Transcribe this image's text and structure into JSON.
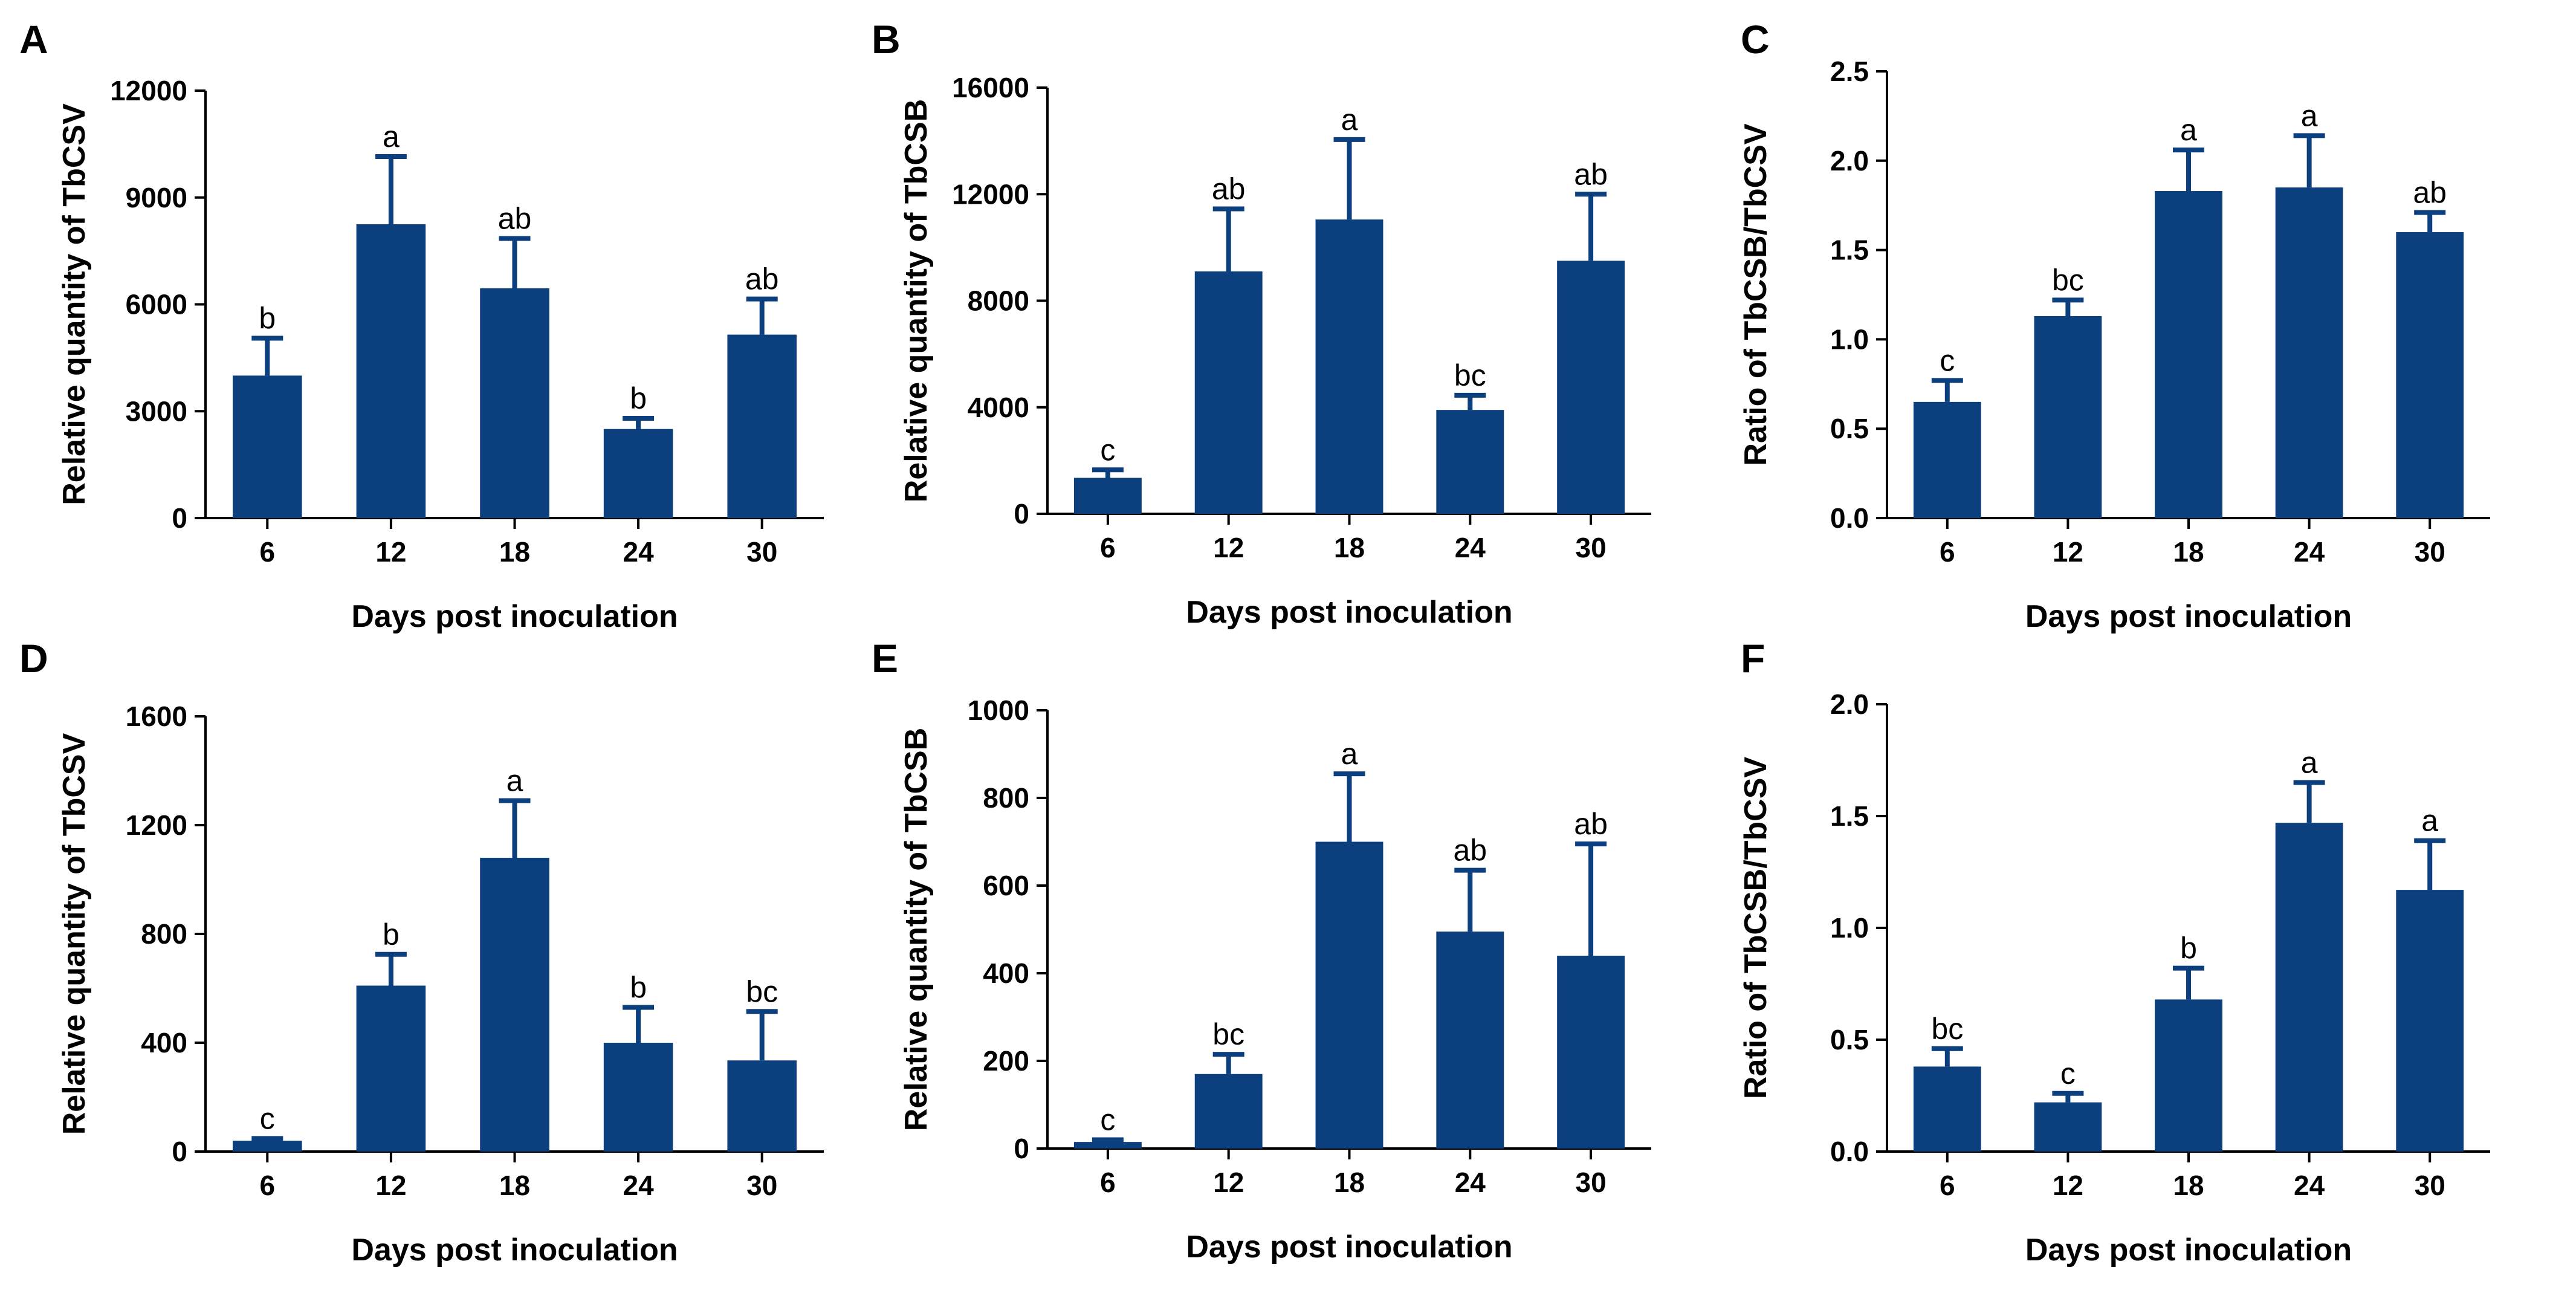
{
  "figure": {
    "xlabel": "Days post inoculation"
  },
  "colors": {
    "bar": "#0c3f7e",
    "axis": "#000000"
  },
  "chart_data": [
    {
      "panel": "A",
      "type": "bar",
      "title": "",
      "categories": [
        "6",
        "12",
        "18",
        "24",
        "30"
      ],
      "values": [
        4000,
        8250,
        6450,
        2500,
        5150
      ],
      "errors": [
        1050,
        1900,
        1400,
        300,
        1000
      ],
      "significance": [
        "b",
        "a",
        "ab",
        "b",
        "ab"
      ],
      "xlabel": "Days post inoculation",
      "ylabel": "Relative quantity of TbCSV",
      "ylim": [
        0,
        12000
      ],
      "yticks": [
        0,
        3000,
        6000,
        9000,
        12000
      ],
      "ytick_labels": [
        "0",
        "3000",
        "6000",
        "9000",
        "12000"
      ]
    },
    {
      "panel": "B",
      "type": "bar",
      "title": "",
      "categories": [
        "6",
        "12",
        "18",
        "24",
        "30"
      ],
      "values": [
        1350,
        9100,
        11050,
        3900,
        9500
      ],
      "errors": [
        300,
        2350,
        3000,
        550,
        2500
      ],
      "significance": [
        "c",
        "ab",
        "a",
        "bc",
        "ab"
      ],
      "xlabel": "Days post inoculation",
      "ylabel": "Relative quantity of TbCSB",
      "ylim": [
        0,
        16000
      ],
      "yticks": [
        0,
        4000,
        8000,
        12000,
        16000
      ],
      "ytick_labels": [
        "0",
        "4000",
        "8000",
        "12000",
        "16000"
      ]
    },
    {
      "panel": "C",
      "type": "bar",
      "title": "",
      "categories": [
        "6",
        "12",
        "18",
        "24",
        "30"
      ],
      "values": [
        0.65,
        1.13,
        1.83,
        1.85,
        1.6
      ],
      "errors": [
        0.12,
        0.09,
        0.23,
        0.29,
        0.11
      ],
      "significance": [
        "c",
        "bc",
        "a",
        "a",
        "ab"
      ],
      "xlabel": "Days post inoculation",
      "ylabel": "Ratio of TbCSB/TbCSV",
      "ylim": [
        0,
        2.5
      ],
      "yticks": [
        0,
        0.5,
        1.0,
        1.5,
        2.0,
        2.5
      ],
      "ytick_labels": [
        "0.0",
        "0.5",
        "1.0",
        "1.5",
        "2.0",
        "2.5"
      ]
    },
    {
      "panel": "D",
      "type": "bar",
      "title": "",
      "categories": [
        "6",
        "12",
        "18",
        "24",
        "30"
      ],
      "values": [
        40,
        610,
        1080,
        400,
        335
      ],
      "errors": [
        8,
        115,
        210,
        130,
        180
      ],
      "significance": [
        "c",
        "b",
        "a",
        "b",
        "bc"
      ],
      "xlabel": "Days post inoculation",
      "ylabel": "Relative quantity of TbCSV",
      "ylim": [
        0,
        1600
      ],
      "yticks": [
        0,
        400,
        800,
        1200,
        1600
      ],
      "ytick_labels": [
        "0",
        "400",
        "800",
        "1200",
        "1600"
      ]
    },
    {
      "panel": "E",
      "type": "bar",
      "title": "",
      "categories": [
        "6",
        "12",
        "18",
        "24",
        "30"
      ],
      "values": [
        15,
        170,
        700,
        495,
        440
      ],
      "errors": [
        5,
        45,
        155,
        140,
        255
      ],
      "significance": [
        "c",
        "bc",
        "a",
        "ab",
        "ab"
      ],
      "xlabel": "Days post inoculation",
      "ylabel": "Relative quantity of TbCSB",
      "ylim": [
        0,
        1000
      ],
      "yticks": [
        0,
        200,
        400,
        600,
        800,
        1000
      ],
      "ytick_labels": [
        "0",
        "200",
        "400",
        "600",
        "800",
        "1000"
      ]
    },
    {
      "panel": "F",
      "type": "bar",
      "title": "",
      "categories": [
        "6",
        "12",
        "18",
        "24",
        "30"
      ],
      "values": [
        0.38,
        0.22,
        0.68,
        1.47,
        1.17
      ],
      "errors": [
        0.08,
        0.04,
        0.14,
        0.18,
        0.22
      ],
      "significance": [
        "bc",
        "c",
        "b",
        "a",
        "a"
      ],
      "xlabel": "Days post inoculation",
      "ylabel": "Ratio of TbCSB/TbCSV",
      "ylim": [
        0,
        2.0
      ],
      "yticks": [
        0,
        0.5,
        1.0,
        1.5,
        2.0
      ],
      "ytick_labels": [
        "0.0",
        "0.5",
        "1.0",
        "1.5",
        "2.0"
      ]
    }
  ]
}
